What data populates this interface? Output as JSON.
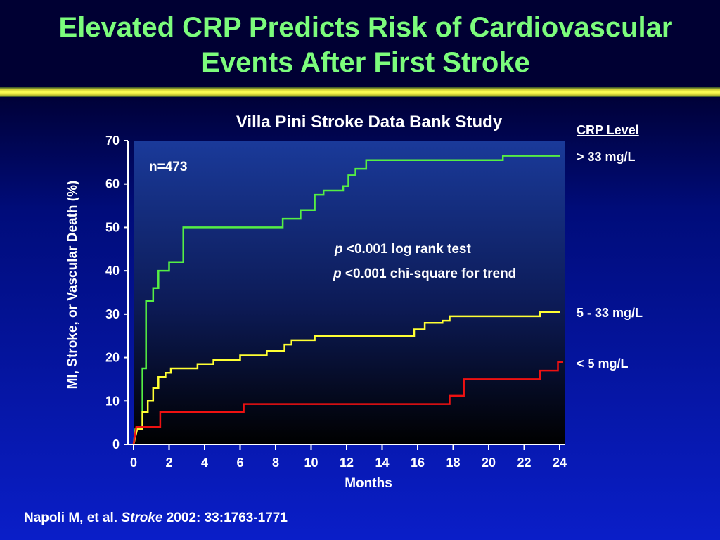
{
  "title_line1": "Elevated CRP Predicts Risk of Cardiovascular",
  "title_line2": "Events After First Stroke",
  "citation": {
    "authors": "Napoli M, et al.",
    "journal": "Stroke",
    "details": "2002: 33:1763-1771"
  },
  "colors": {
    "title": "#7CFC7C",
    "high": "#55ee44",
    "mid": "#ffff33",
    "low": "#ee1111"
  },
  "chart_data": {
    "type": "line",
    "subtype": "kaplan-meier step",
    "title": "Villa Pini Stroke Data Bank Study",
    "xlabel": "Months",
    "ylabel": "MI, Stroke, or Vascular Death (%)",
    "xlim": [
      0,
      24
    ],
    "ylim": [
      0,
      70
    ],
    "xticks": [
      "0",
      "2",
      "4",
      "6",
      "8",
      "10",
      "12",
      "14",
      "16",
      "18",
      "20",
      "22",
      "24"
    ],
    "yticks": [
      "0",
      "10",
      "20",
      "30",
      "40",
      "50",
      "60",
      "70"
    ],
    "legend_title": "CRP Level",
    "annotations": {
      "n": "n=473",
      "p1_italic": "p",
      "p1_rest": " <0.001 log rank test",
      "p2_italic": "p",
      "p2_rest": " <0.001 chi-square for trend"
    },
    "series": [
      {
        "name": "> 33 mg/L",
        "color": "#55ee44",
        "points": [
          [
            0,
            0
          ],
          [
            0.1,
            3.5
          ],
          [
            0.5,
            3.5
          ],
          [
            0.5,
            17.5
          ],
          [
            0.7,
            17.5
          ],
          [
            0.7,
            33
          ],
          [
            1.1,
            33
          ],
          [
            1.1,
            36
          ],
          [
            1.4,
            36
          ],
          [
            1.4,
            40
          ],
          [
            2.0,
            40
          ],
          [
            2.0,
            42
          ],
          [
            2.8,
            42
          ],
          [
            2.8,
            50
          ],
          [
            8.4,
            50
          ],
          [
            8.4,
            52
          ],
          [
            9.4,
            52
          ],
          [
            9.4,
            54
          ],
          [
            10.2,
            54
          ],
          [
            10.2,
            57.5
          ],
          [
            10.7,
            57.5
          ],
          [
            10.7,
            58.5
          ],
          [
            11.8,
            58.5
          ],
          [
            11.8,
            59.5
          ],
          [
            12.1,
            59.5
          ],
          [
            12.1,
            62
          ],
          [
            12.5,
            62
          ],
          [
            12.5,
            63.5
          ],
          [
            13.1,
            63.5
          ],
          [
            13.1,
            65.5
          ],
          [
            20.8,
            65.5
          ],
          [
            20.8,
            66.5
          ],
          [
            24.0,
            66.5
          ]
        ]
      },
      {
        "name": "5 - 33 mg/L",
        "color": "#ffff33",
        "points": [
          [
            0,
            0
          ],
          [
            0.2,
            3.5
          ],
          [
            0.5,
            3.5
          ],
          [
            0.5,
            7.5
          ],
          [
            0.8,
            7.5
          ],
          [
            0.8,
            10
          ],
          [
            1.1,
            10
          ],
          [
            1.1,
            13
          ],
          [
            1.4,
            13
          ],
          [
            1.4,
            15.5
          ],
          [
            1.8,
            15.5
          ],
          [
            1.8,
            16.5
          ],
          [
            2.1,
            16.5
          ],
          [
            2.1,
            17.5
          ],
          [
            3.6,
            17.5
          ],
          [
            3.6,
            18.5
          ],
          [
            4.5,
            18.5
          ],
          [
            4.5,
            19.5
          ],
          [
            6.0,
            19.5
          ],
          [
            6.0,
            20.5
          ],
          [
            7.5,
            20.5
          ],
          [
            7.5,
            21.5
          ],
          [
            8.5,
            21.5
          ],
          [
            8.5,
            23
          ],
          [
            8.9,
            23
          ],
          [
            8.9,
            24
          ],
          [
            10.2,
            24
          ],
          [
            10.2,
            25
          ],
          [
            15.8,
            25
          ],
          [
            15.8,
            26.5
          ],
          [
            16.4,
            26.5
          ],
          [
            16.4,
            28
          ],
          [
            17.4,
            28
          ],
          [
            17.4,
            28.5
          ],
          [
            17.8,
            28.5
          ],
          [
            17.8,
            29.5
          ],
          [
            22.9,
            29.5
          ],
          [
            22.9,
            30.5
          ],
          [
            24.0,
            30.5
          ]
        ]
      },
      {
        "name": "< 5 mg/L",
        "color": "#ee1111",
        "points": [
          [
            0,
            0
          ],
          [
            0.15,
            4
          ],
          [
            1.5,
            4
          ],
          [
            1.5,
            7.5
          ],
          [
            6.2,
            7.5
          ],
          [
            6.2,
            9.3
          ],
          [
            17.8,
            9.3
          ],
          [
            17.8,
            11.2
          ],
          [
            18.6,
            11.2
          ],
          [
            18.6,
            15
          ],
          [
            22.9,
            15
          ],
          [
            22.9,
            17
          ],
          [
            23.9,
            17
          ],
          [
            23.9,
            19
          ],
          [
            24.2,
            19
          ]
        ]
      }
    ]
  }
}
